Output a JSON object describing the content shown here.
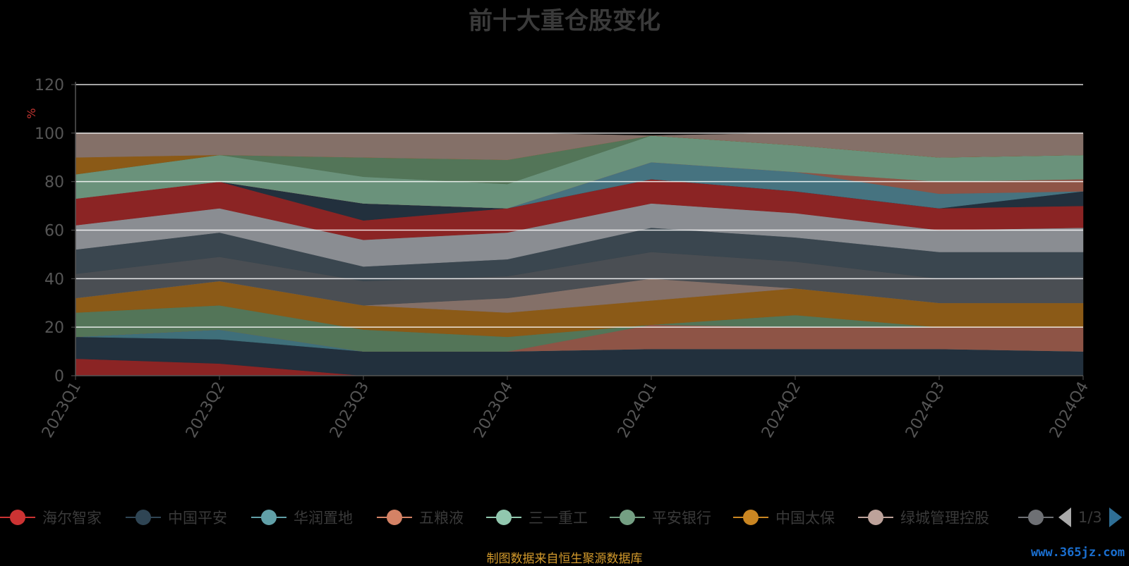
{
  "chart_data": {
    "type": "area",
    "stacked": true,
    "title": "前十大重仓股变化",
    "ylabel": "%",
    "xlabel": "",
    "ylim": [
      0,
      120
    ],
    "yticks": [
      "0",
      "20",
      "40",
      "60",
      "80",
      "100",
      "120"
    ],
    "categories": [
      "2023Q1",
      "2023Q2",
      "2023Q3",
      "2023Q4",
      "2024Q1",
      "2024Q2",
      "2024Q3",
      "2024Q4"
    ],
    "grid": true,
    "legend_placement": "bottom",
    "series": [
      {
        "name": "海尔智家",
        "color": "#8b2424",
        "values": [
          7,
          5,
          0,
          0,
          0,
          0,
          0,
          0
        ]
      },
      {
        "name": "",
        "color": "#22303d",
        "values": [
          9,
          10,
          10,
          10,
          11,
          11,
          11,
          10
        ]
      },
      {
        "name": "华润置地",
        "color": "#3f6f7a",
        "values": [
          0,
          4,
          0,
          0,
          0,
          0,
          0,
          0
        ]
      },
      {
        "name": "五粮液",
        "color": "#8e5446",
        "values": [
          0,
          0,
          0,
          0,
          10,
          9,
          9,
          10
        ]
      },
      {
        "name": "",
        "color": "#537558",
        "values": [
          10,
          10,
          9,
          6,
          0,
          5,
          0,
          0
        ]
      },
      {
        "name": "中国太保",
        "color": "#8b5a17",
        "values": [
          6,
          10,
          10,
          10,
          10,
          11,
          10,
          10
        ]
      },
      {
        "name": "绿城管理控股",
        "color": "#847068",
        "values": [
          0,
          0,
          0,
          6,
          9,
          0,
          0,
          0
        ]
      },
      {
        "name": "",
        "color": "#4a4e53",
        "values": [
          10,
          10,
          10,
          9,
          11,
          11,
          10,
          11
        ]
      },
      {
        "name": "",
        "color": "#3a464f",
        "values": [
          10,
          10,
          6,
          7,
          10,
          10,
          11,
          10
        ]
      },
      {
        "name": "",
        "color": "#8a8d92",
        "values": [
          10,
          10,
          11,
          11,
          10,
          10,
          9,
          10
        ]
      },
      {
        "name": "",
        "color": "#8b2424",
        "values": [
          11,
          11,
          8,
          10,
          10,
          9,
          9,
          9
        ]
      },
      {
        "name": "",
        "color": "#22303d",
        "values": [
          0,
          0,
          7,
          0,
          0,
          0,
          0,
          6
        ]
      },
      {
        "name": "",
        "color": "#467380",
        "values": [
          0,
          0,
          0,
          0,
          7,
          8,
          6,
          0
        ]
      },
      {
        "name": "",
        "color": "#8e5446",
        "values": [
          0,
          0,
          0,
          0,
          0,
          0,
          5,
          5
        ]
      },
      {
        "name": "",
        "color": "#6a927b",
        "values": [
          10,
          11,
          11,
          10,
          11,
          11,
          10,
          10
        ]
      },
      {
        "name": "",
        "color": "#537558",
        "values": [
          0,
          0,
          8,
          10,
          0,
          0,
          0,
          0
        ]
      },
      {
        "name": "",
        "color": "#8b5a17",
        "values": [
          7,
          0,
          0,
          0,
          0,
          0,
          0,
          0
        ]
      },
      {
        "name": "",
        "color": "#847068",
        "values": [
          10,
          9,
          10,
          11,
          0,
          5,
          10,
          9
        ]
      }
    ]
  },
  "legend": {
    "items": [
      {
        "label": "海尔智家",
        "color": "#cc3333"
      },
      {
        "label": "中国平安",
        "color": "#2f4554"
      },
      {
        "label": "华润置地",
        "color": "#61a0a8"
      },
      {
        "label": "五粮液",
        "color": "#d48265"
      },
      {
        "label": "三一重工",
        "color": "#91c7ae"
      },
      {
        "label": "平安银行",
        "color": "#749f83"
      },
      {
        "label": "中国太保",
        "color": "#ca8622"
      },
      {
        "label": "绿城管理控股",
        "color": "#bda29a"
      },
      {
        "label": "",
        "color": "#6e7074"
      }
    ],
    "pager": "1/3"
  },
  "footer": {
    "source": "制图数据来自恒生聚源数据库",
    "watermark": "www.365jz.com"
  },
  "colors": {
    "axis": "#555555",
    "grid": "#ffffff",
    "ylabel": "#c23531",
    "background": "#000000"
  }
}
